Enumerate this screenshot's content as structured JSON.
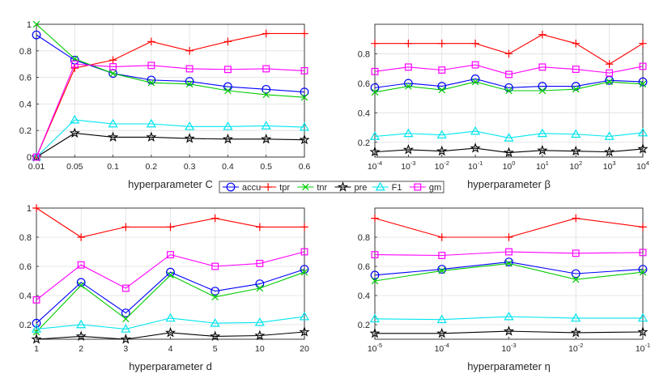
{
  "legend": {
    "entries": [
      {
        "label": "accu",
        "color": "#0000ff",
        "marker": "circle"
      },
      {
        "label": "tpr",
        "color": "#ff0000",
        "marker": "plus"
      },
      {
        "label": "tnr",
        "color": "#00cc00",
        "marker": "x"
      },
      {
        "label": "pre",
        "color": "#000000",
        "marker": "star"
      },
      {
        "label": "F1",
        "color": "#00e5ee",
        "marker": "triangle"
      },
      {
        "label": "gm",
        "color": "#ff00ff",
        "marker": "square"
      }
    ]
  },
  "chart_data": [
    {
      "type": "line",
      "xlabel": "hyperparameter C",
      "categories": [
        "0.01",
        "0.05",
        "0.1",
        "0.2",
        "0.3",
        "0.4",
        "0.5",
        "0.6"
      ],
      "ylim": [
        0,
        1
      ],
      "yticks": [
        "0",
        "0.2",
        "0.4",
        "0.6",
        "0.8",
        "1"
      ],
      "series": [
        {
          "name": "accu",
          "values": [
            0.92,
            0.73,
            0.63,
            0.58,
            0.57,
            0.53,
            0.51,
            0.49
          ]
        },
        {
          "name": "tpr",
          "values": [
            0.0,
            0.67,
            0.73,
            0.87,
            0.8,
            0.87,
            0.93,
            0.93
          ]
        },
        {
          "name": "tnr",
          "values": [
            1.0,
            0.74,
            0.63,
            0.56,
            0.55,
            0.5,
            0.47,
            0.45
          ]
        },
        {
          "name": "pre",
          "values": [
            0.0,
            0.18,
            0.15,
            0.15,
            0.14,
            0.135,
            0.135,
            0.13
          ]
        },
        {
          "name": "F1",
          "values": [
            0.0,
            0.28,
            0.25,
            0.25,
            0.23,
            0.23,
            0.235,
            0.225
          ]
        },
        {
          "name": "gm",
          "values": [
            0.0,
            0.7,
            0.68,
            0.69,
            0.665,
            0.66,
            0.665,
            0.65
          ]
        }
      ]
    },
    {
      "type": "line",
      "xlabel": "hyperparameter β",
      "categories": [
        "10^-4",
        "10^-3",
        "10^-2",
        "10^-1",
        "10^0",
        "10^1",
        "10^2",
        "10^3",
        "10^4"
      ],
      "ylim": [
        0.1,
        1
      ],
      "yticks": [
        "0.2",
        "0.4",
        "0.6",
        "0.8"
      ],
      "series": [
        {
          "name": "accu",
          "values": [
            0.57,
            0.6,
            0.58,
            0.63,
            0.57,
            0.58,
            0.58,
            0.62,
            0.61
          ]
        },
        {
          "name": "tpr",
          "values": [
            0.87,
            0.87,
            0.87,
            0.87,
            0.8,
            0.93,
            0.87,
            0.73,
            0.87
          ]
        },
        {
          "name": "tnr",
          "values": [
            0.54,
            0.58,
            0.555,
            0.61,
            0.55,
            0.55,
            0.56,
            0.61,
            0.595
          ]
        },
        {
          "name": "pre",
          "values": [
            0.135,
            0.15,
            0.14,
            0.16,
            0.13,
            0.145,
            0.14,
            0.135,
            0.155
          ]
        },
        {
          "name": "F1",
          "values": [
            0.24,
            0.26,
            0.25,
            0.275,
            0.23,
            0.26,
            0.255,
            0.24,
            0.265
          ]
        },
        {
          "name": "gm",
          "values": [
            0.68,
            0.71,
            0.69,
            0.725,
            0.66,
            0.71,
            0.695,
            0.67,
            0.715
          ]
        }
      ]
    },
    {
      "type": "line",
      "xlabel": "hyperparameter d",
      "categories": [
        "1",
        "2",
        "3",
        "4",
        "5",
        "10",
        "20"
      ],
      "ylim": [
        0.1,
        1
      ],
      "yticks": [
        "0.2",
        "0.4",
        "0.6",
        "0.8",
        "1"
      ],
      "series": [
        {
          "name": "accu",
          "values": [
            0.21,
            0.49,
            0.28,
            0.56,
            0.43,
            0.48,
            0.58
          ]
        },
        {
          "name": "tpr",
          "values": [
            1.0,
            0.8,
            0.87,
            0.87,
            0.93,
            0.87,
            0.87
          ]
        },
        {
          "name": "tnr",
          "values": [
            0.15,
            0.47,
            0.24,
            0.54,
            0.39,
            0.45,
            0.56
          ]
        },
        {
          "name": "pre",
          "values": [
            0.1,
            0.12,
            0.1,
            0.145,
            0.12,
            0.125,
            0.15
          ]
        },
        {
          "name": "F1",
          "values": [
            0.17,
            0.2,
            0.17,
            0.245,
            0.21,
            0.215,
            0.255
          ]
        },
        {
          "name": "gm",
          "values": [
            0.37,
            0.61,
            0.45,
            0.68,
            0.6,
            0.62,
            0.7
          ]
        }
      ]
    },
    {
      "type": "line",
      "xlabel": "hyperparameter η",
      "categories": [
        "10^-5",
        "10^-4",
        "10^-3",
        "10^-2",
        "10^-1"
      ],
      "ylim": [
        0.1,
        1
      ],
      "yticks": [
        "0.2",
        "0.4",
        "0.6",
        "0.8"
      ],
      "series": [
        {
          "name": "accu",
          "values": [
            0.54,
            0.58,
            0.63,
            0.55,
            0.58
          ]
        },
        {
          "name": "tpr",
          "values": [
            0.93,
            0.8,
            0.8,
            0.93,
            0.87
          ]
        },
        {
          "name": "tnr",
          "values": [
            0.5,
            0.57,
            0.62,
            0.51,
            0.56
          ]
        },
        {
          "name": "pre",
          "values": [
            0.14,
            0.14,
            0.155,
            0.145,
            0.15
          ]
        },
        {
          "name": "F1",
          "values": [
            0.24,
            0.235,
            0.255,
            0.245,
            0.245
          ]
        },
        {
          "name": "gm",
          "values": [
            0.68,
            0.675,
            0.7,
            0.69,
            0.695
          ]
        }
      ]
    }
  ]
}
